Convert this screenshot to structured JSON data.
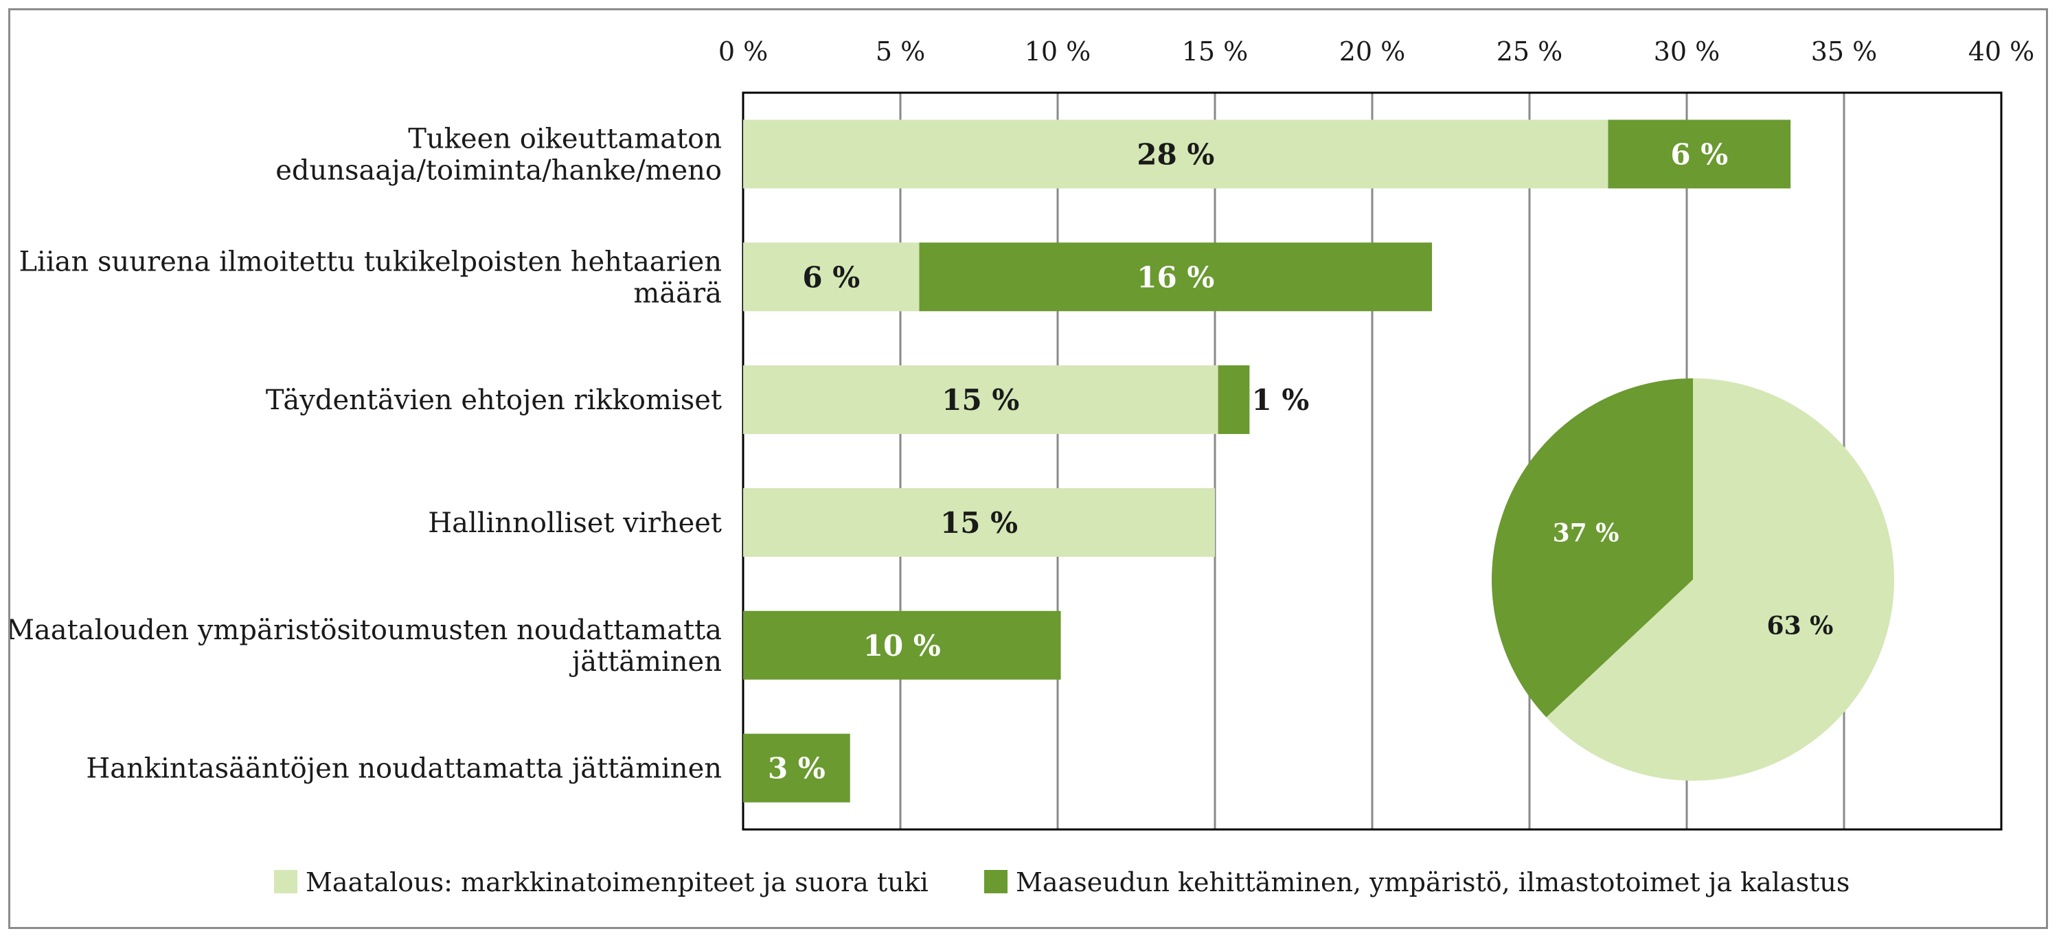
{
  "chart_data": [
    {
      "type": "bar",
      "orientation": "horizontal",
      "stacked": true,
      "xlim": [
        0,
        40
      ],
      "x_ticks": [
        "0 %",
        "5 %",
        "10 %",
        "15 %",
        "20 %",
        "25 %",
        "30 %",
        "35 %",
        "40 %"
      ],
      "x_axis_position": "top",
      "grid": true,
      "categories": [
        [
          "Tukeen oikeuttamaton",
          "edunsaaja/toiminta/hanke/meno"
        ],
        [
          "Liian suurena ilmoitettu tukikelpoisten hehtaarien",
          "määrä"
        ],
        [
          "Täydentävien ehtojen rikkomiset"
        ],
        [
          "Hallinnolliset virheet"
        ],
        [
          "Maatalouden ympäristösitoumusten noudattamatta",
          "jättäminen"
        ],
        [
          "Hankintasääntöjen noudattamatta jättäminen"
        ]
      ],
      "series": [
        {
          "name": "Maatalous: markkinatoimenpiteet ja suora tuki",
          "color": "#d4e7b5",
          "values": [
            27.5,
            5.6,
            15.1,
            15.0,
            0,
            0
          ],
          "labels": [
            "28 %",
            "6 %",
            "15 %",
            "15 %",
            "",
            ""
          ]
        },
        {
          "name": "Maaseudun kehittäminen, ympäristö, ilmastotoimet ja kalastus",
          "color": "#6a9a30",
          "values": [
            5.8,
            16.3,
            1.0,
            0,
            10.1,
            3.4
          ],
          "labels": [
            "6 %",
            "16 %",
            "1 %",
            "",
            "10 %",
            "3 %"
          ]
        }
      ],
      "legend_position": "bottom"
    },
    {
      "type": "pie",
      "slices": [
        {
          "label": "63 %",
          "value": 63,
          "color": "#d4e7b5",
          "series": "Maatalous: markkinatoimenpiteet ja suora tuki"
        },
        {
          "label": "37 %",
          "value": 37,
          "color": "#6a9a30",
          "series": "Maaseudun kehittäminen, ympäristö, ilmastotoimet ja kalastus"
        }
      ]
    }
  ],
  "legend": {
    "items": [
      {
        "label": "Maatalous: markkinatoimenpiteet ja suora tuki",
        "color": "#d4e7b5"
      },
      {
        "label": "Maaseudun kehittäminen, ympäristö, ilmastotoimet ja kalastus",
        "color": "#6a9a30"
      }
    ]
  }
}
